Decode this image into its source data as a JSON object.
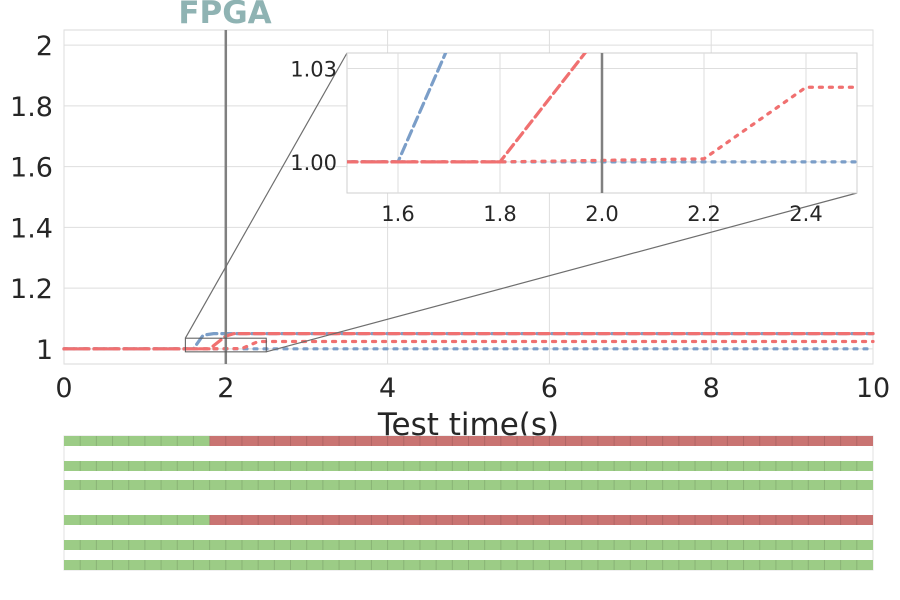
{
  "chart_data": {
    "type": "line",
    "title": "FPGA",
    "xlabel": "Test time(s)",
    "ylabel": "",
    "xlim": [
      0,
      10
    ],
    "ylim": [
      0.95,
      2.05
    ],
    "x_ticks": [
      0,
      2,
      4,
      6,
      8,
      10
    ],
    "y_ticks": [
      1.0,
      1.2,
      1.4,
      1.6,
      1.8,
      2.0
    ],
    "grid": true,
    "vertical_marker_x": 2.0,
    "series": [
      {
        "style": "dashed",
        "color": "#7b9ec8",
        "x": [
          0,
          1.6,
          1.72,
          1.85,
          10
        ],
        "y": [
          1.0,
          1.0,
          1.045,
          1.05,
          1.05
        ]
      },
      {
        "style": "dotted",
        "color": "#7b9ec8",
        "x": [
          0,
          10
        ],
        "y": [
          1.0,
          1.0
        ]
      },
      {
        "style": "dashed",
        "color": "#f07070",
        "x": [
          0,
          1.8,
          2.0,
          2.1,
          10
        ],
        "y": [
          1.0,
          1.0,
          1.042,
          1.05,
          1.05
        ]
      },
      {
        "style": "dotted",
        "color": "#f07070",
        "x": [
          0,
          1.8,
          2.2,
          2.4,
          10
        ],
        "y": [
          1.0,
          1.0,
          1.001,
          1.024,
          1.024
        ]
      }
    ],
    "inset": {
      "xlim": [
        1.5,
        2.5
      ],
      "ylim": [
        0.99,
        1.035
      ],
      "x_ticks": [
        1.6,
        1.8,
        2.0,
        2.2,
        2.4
      ],
      "y_ticks": [
        1.0,
        1.03
      ],
      "tick_decimals": 2
    },
    "status_bars": [
      {
        "green_until": 1.8
      },
      {
        "green_until": 10
      },
      {
        "green_until": 10
      },
      {
        "green_until": 1.8
      },
      {
        "green_until": 10
      },
      {
        "green_until": 10
      }
    ],
    "status_colors": {
      "ok": "#9ccc86",
      "fail": "#c97472"
    },
    "title_color": "#8fb3b3"
  }
}
